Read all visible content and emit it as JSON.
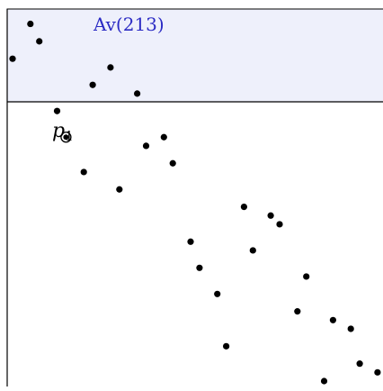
{
  "region": {
    "label": "Av(213)",
    "fill": "#eef0fb",
    "stroke": "#000000",
    "label_color": "#2b2bc4"
  },
  "marked_point": {
    "name": "p",
    "subscript": "1",
    "x": 7,
    "y": 29
  },
  "chart_data": {
    "type": "scatter",
    "title": "",
    "xlabel": "",
    "ylabel": "",
    "xlim": [
      0,
      42
    ],
    "ylim": [
      0,
      42
    ],
    "grid": false,
    "points": [
      {
        "x": 1,
        "y": 38
      },
      {
        "x": 3,
        "y": 42
      },
      {
        "x": 4,
        "y": 40
      },
      {
        "x": 6,
        "y": 32
      },
      {
        "x": 7,
        "y": 29
      },
      {
        "x": 9,
        "y": 25
      },
      {
        "x": 10,
        "y": 35
      },
      {
        "x": 12,
        "y": 37
      },
      {
        "x": 13,
        "y": 23
      },
      {
        "x": 15,
        "y": 34
      },
      {
        "x": 16,
        "y": 28
      },
      {
        "x": 18,
        "y": 29
      },
      {
        "x": 19,
        "y": 26
      },
      {
        "x": 21,
        "y": 17
      },
      {
        "x": 22,
        "y": 14
      },
      {
        "x": 24,
        "y": 11
      },
      {
        "x": 25,
        "y": 5
      },
      {
        "x": 27,
        "y": 21
      },
      {
        "x": 28,
        "y": 16
      },
      {
        "x": 30,
        "y": 20
      },
      {
        "x": 31,
        "y": 19
      },
      {
        "x": 33,
        "y": 9
      },
      {
        "x": 34,
        "y": 13
      },
      {
        "x": 36,
        "y": 1
      },
      {
        "x": 37,
        "y": 8
      },
      {
        "x": 39,
        "y": 7
      },
      {
        "x": 40,
        "y": 3
      },
      {
        "x": 42,
        "y": 2
      }
    ]
  }
}
